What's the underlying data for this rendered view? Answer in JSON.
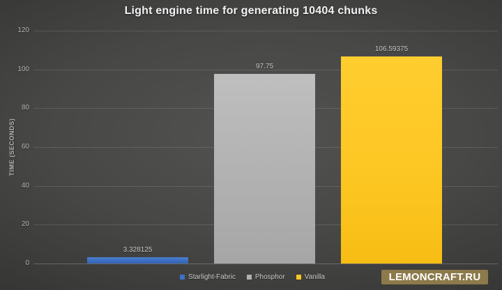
{
  "title": "Light engine time for generating 10404 chunks",
  "chart_data": {
    "type": "bar",
    "title": "Light engine time for generating 10404 chunks",
    "categories": [
      "Starlight-Fabric",
      "Phosphor",
      "Vanilla"
    ],
    "values": [
      3.328125,
      97.75,
      106.59375
    ],
    "value_labels": [
      "3.328125",
      "97.75",
      "106.59375"
    ],
    "series_colors": [
      "#3e70c4",
      "#b1b1b1",
      "#fdc723"
    ],
    "xlabel": "",
    "ylabel": "TIME (SECONDS)",
    "ylim": [
      0,
      120
    ],
    "yticks": [
      0,
      20,
      40,
      60,
      80,
      100,
      120
    ],
    "grid": true,
    "legend_position": "bottom",
    "legend_entries": [
      "Starlight-Fabric",
      "Phosphor",
      "Vanilla"
    ]
  },
  "watermark": {
    "text": "LEMONCRAFT.RU",
    "bg_color": "#8d7a4b",
    "text_color": "#ffffff"
  }
}
